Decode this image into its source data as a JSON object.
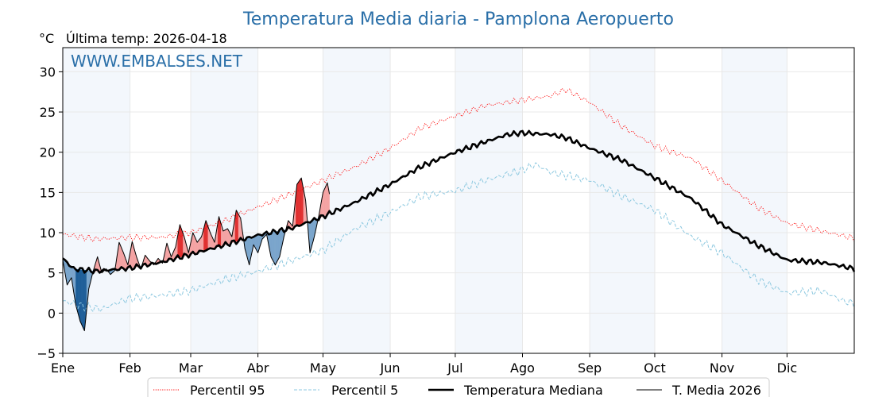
{
  "title": "Temperatura Media diaria - Pamplona Aeropuerto",
  "unit": "°C",
  "last_temp_label": "Última temp: 2026-04-18",
  "watermark": "WWW.EMBALSES.NET",
  "colors": {
    "title": "#2a6fa8",
    "p95": "#ff0000",
    "p5": "#8ec9e0",
    "median": "#000000",
    "current": "#000000",
    "above_fill": "#f4a3a3",
    "above_strong": "#e03030",
    "below_fill": "#7aa5cc",
    "below_strong": "#1f5f99",
    "band": "#f3f7fc",
    "grid": "#e8e8e8"
  },
  "chart_data": {
    "type": "line",
    "title": "Temperatura Media diaria - Pamplona Aeropuerto",
    "ylabel": "°C",
    "ylim": [
      -5,
      33
    ],
    "xlim": [
      0,
      365
    ],
    "yticks": [
      -5,
      0,
      5,
      10,
      15,
      20,
      25,
      30
    ],
    "yticks_labels": [
      "−5",
      "0",
      "5",
      "10",
      "15",
      "20",
      "25",
      "30"
    ],
    "month_labels": [
      "Ene",
      "Feb",
      "Mar",
      "Abr",
      "May",
      "Jun",
      "Jul",
      "Ago",
      "Sep",
      "Oct",
      "Nov",
      "Dic"
    ],
    "month_starts": [
      0,
      31,
      59,
      90,
      120,
      151,
      181,
      212,
      243,
      273,
      304,
      334
    ],
    "grid": true,
    "legend_position": "bottom",
    "series": [
      {
        "name": "Percentil 95",
        "style": "dotted",
        "points": [
          [
            0,
            9.8
          ],
          [
            15,
            9.2
          ],
          [
            30,
            9.4
          ],
          [
            45,
            9.4
          ],
          [
            59,
            10.0
          ],
          [
            75,
            11.5
          ],
          [
            90,
            13.2
          ],
          [
            105,
            14.8
          ],
          [
            120,
            16.5
          ],
          [
            135,
            18.2
          ],
          [
            151,
            20.5
          ],
          [
            165,
            23.0
          ],
          [
            181,
            24.5
          ],
          [
            195,
            25.8
          ],
          [
            212,
            26.5
          ],
          [
            225,
            27.0
          ],
          [
            232,
            27.8
          ],
          [
            243,
            26.2
          ],
          [
            258,
            23.2
          ],
          [
            273,
            20.8
          ],
          [
            290,
            19.2
          ],
          [
            304,
            16.5
          ],
          [
            320,
            13.2
          ],
          [
            334,
            11.2
          ],
          [
            350,
            10.2
          ],
          [
            365,
            9.3
          ]
        ]
      },
      {
        "name": "Percentil 5",
        "style": "dashed",
        "points": [
          [
            0,
            1.5
          ],
          [
            10,
            0.8
          ],
          [
            18,
            0.5
          ],
          [
            30,
            1.8
          ],
          [
            45,
            2.2
          ],
          [
            59,
            2.8
          ],
          [
            75,
            4.2
          ],
          [
            90,
            5.2
          ],
          [
            105,
            6.5
          ],
          [
            120,
            7.8
          ],
          [
            135,
            10.5
          ],
          [
            151,
            12.5
          ],
          [
            165,
            14.5
          ],
          [
            181,
            15.2
          ],
          [
            195,
            16.5
          ],
          [
            212,
            17.8
          ],
          [
            218,
            18.5
          ],
          [
            225,
            17.5
          ],
          [
            243,
            16.5
          ],
          [
            258,
            14.5
          ],
          [
            273,
            12.8
          ],
          [
            290,
            9.5
          ],
          [
            304,
            7.5
          ],
          [
            320,
            4.2
          ],
          [
            334,
            2.5
          ],
          [
            350,
            2.8
          ],
          [
            360,
            1.5
          ],
          [
            365,
            1.2
          ]
        ]
      },
      {
        "name": "Temperatura Mediana",
        "style": "solid-thick",
        "points": [
          [
            0,
            6.8
          ],
          [
            5,
            5.5
          ],
          [
            15,
            5.2
          ],
          [
            31,
            5.6
          ],
          [
            45,
            6.3
          ],
          [
            59,
            7.3
          ],
          [
            75,
            8.5
          ],
          [
            90,
            9.7
          ],
          [
            105,
            10.5
          ],
          [
            120,
            12.0
          ],
          [
            135,
            13.8
          ],
          [
            151,
            16.0
          ],
          [
            165,
            18.2
          ],
          [
            181,
            20.0
          ],
          [
            195,
            21.3
          ],
          [
            205,
            22.2
          ],
          [
            212,
            22.4
          ],
          [
            225,
            22.2
          ],
          [
            232,
            21.8
          ],
          [
            243,
            20.5
          ],
          [
            258,
            19.0
          ],
          [
            273,
            16.8
          ],
          [
            290,
            14.2
          ],
          [
            304,
            11.0
          ],
          [
            320,
            8.5
          ],
          [
            334,
            6.6
          ],
          [
            350,
            6.3
          ],
          [
            360,
            5.8
          ],
          [
            365,
            5.5
          ]
        ]
      },
      {
        "name": "T. Media 2026",
        "style": "solid-thin",
        "points": [
          [
            0,
            6.6
          ],
          [
            2,
            3.5
          ],
          [
            4,
            4.4
          ],
          [
            6,
            1.0
          ],
          [
            8,
            -1.0
          ],
          [
            10,
            -2.2
          ],
          [
            12,
            3.0
          ],
          [
            14,
            5.2
          ],
          [
            16,
            7.0
          ],
          [
            18,
            5.0
          ],
          [
            20,
            5.5
          ],
          [
            22,
            4.8
          ],
          [
            24,
            5.3
          ],
          [
            26,
            8.8
          ],
          [
            28,
            7.5
          ],
          [
            30,
            6.0
          ],
          [
            32,
            8.9
          ],
          [
            34,
            7.0
          ],
          [
            36,
            5.5
          ],
          [
            38,
            7.2
          ],
          [
            40,
            6.5
          ],
          [
            42,
            6.0
          ],
          [
            44,
            6.8
          ],
          [
            46,
            6.2
          ],
          [
            48,
            8.7
          ],
          [
            50,
            7.0
          ],
          [
            52,
            8.2
          ],
          [
            54,
            11.0
          ],
          [
            56,
            9.5
          ],
          [
            58,
            7.5
          ],
          [
            60,
            10.0
          ],
          [
            62,
            8.8
          ],
          [
            64,
            9.5
          ],
          [
            66,
            11.5
          ],
          [
            68,
            10.0
          ],
          [
            70,
            8.8
          ],
          [
            72,
            12.0
          ],
          [
            74,
            10.2
          ],
          [
            76,
            10.5
          ],
          [
            78,
            9.5
          ],
          [
            80,
            12.8
          ],
          [
            82,
            11.8
          ],
          [
            84,
            8.0
          ],
          [
            86,
            6.0
          ],
          [
            88,
            8.5
          ],
          [
            90,
            7.5
          ],
          [
            92,
            9.2
          ],
          [
            94,
            9.8
          ],
          [
            96,
            7.0
          ],
          [
            98,
            6.0
          ],
          [
            100,
            7.0
          ],
          [
            102,
            9.5
          ],
          [
            104,
            11.5
          ],
          [
            106,
            10.8
          ],
          [
            108,
            16.0
          ],
          [
            110,
            16.8
          ],
          [
            112,
            14.0
          ],
          [
            114,
            7.5
          ],
          [
            116,
            9.5
          ],
          [
            118,
            12.0
          ],
          [
            120,
            15.0
          ],
          [
            122,
            16.2
          ],
          [
            123,
            14.8
          ]
        ]
      }
    ]
  },
  "legend": {
    "p95_label": "Percentil 95",
    "p5_label": "Percentil 5",
    "median_label": "Temperatura Mediana",
    "current_label": "T. Media 2026"
  }
}
